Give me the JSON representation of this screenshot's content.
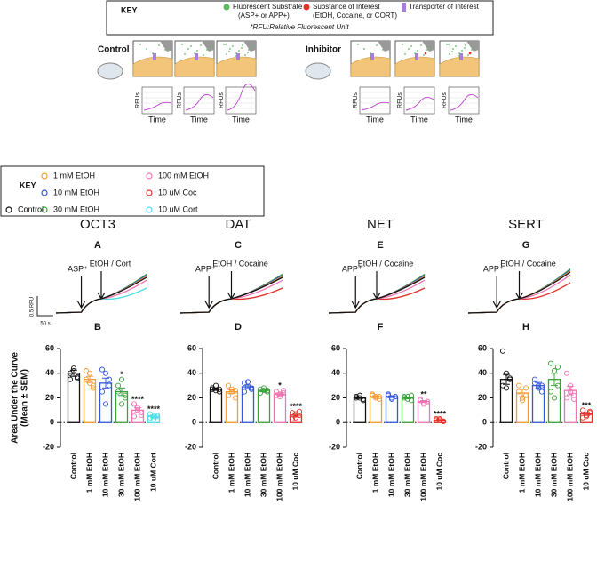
{
  "key_box": {
    "title": "KEY",
    "substrate": [
      "Fluorescent Substrate",
      "(ASP+ or APP+)"
    ],
    "substance": [
      "Substance of Interest",
      "(EtOH, Cocaine, or CORT)"
    ],
    "transporter": "Transporter of Interest",
    "footnote": "*RFU:Relative Fluorescent Unit"
  },
  "schematic": {
    "control_label": "Control",
    "inhibitor_label": "Inhibitor",
    "y_label": "RFUs",
    "x_label": "Time"
  },
  "legend": {
    "title": "KEY",
    "items": [
      {
        "name": "Control",
        "color": "#111111"
      },
      {
        "name": "1 mM EtOH",
        "color": "#f39b35"
      },
      {
        "name": "10 mM EtOH",
        "color": "#3558d6"
      },
      {
        "name": "30 mM EtOH",
        "color": "#3aa13a"
      },
      {
        "name": "100 mM EtOH",
        "color": "#ef74b1"
      },
      {
        "name": "10 uM Coc",
        "color": "#e2302a"
      },
      {
        "name": "10 uM Cort",
        "color": "#4fdde6"
      }
    ]
  },
  "scale_bar": {
    "y": "0.5 RFU",
    "x": "50 s"
  },
  "chart_data": [
    {
      "type": "bar",
      "title": "OCT3",
      "trace_panel": "A",
      "trace_annotations": [
        "ASP⁺",
        "EtOH / Cort"
      ],
      "panel_label": "B",
      "ylabel": [
        "Area Under the Curve",
        "(Mean ± SEM)"
      ],
      "categories": [
        "Control",
        "1 mM EtOH",
        "10 mM EtOH",
        "30 mM EtOH",
        "100 mM EtOH",
        "10 uM Cort"
      ],
      "colors": [
        "#111111",
        "#f39b35",
        "#3558d6",
        "#3aa13a",
        "#ef74b1",
        "#4fdde6"
      ],
      "values": [
        40,
        35,
        32,
        25,
        10,
        5
      ],
      "errors": [
        2.5,
        2.5,
        4,
        3,
        2,
        1
      ],
      "points": [
        [
          40,
          44,
          36,
          35,
          42,
          37
        ],
        [
          42,
          40,
          30,
          35,
          32,
          28
        ],
        [
          43,
          40,
          30,
          25,
          15,
          35
        ],
        [
          30,
          35,
          20,
          25,
          15,
          22
        ],
        [
          15,
          12,
          8,
          5,
          10,
          6
        ],
        [
          7,
          5,
          6,
          4,
          3,
          5
        ]
      ],
      "significance": [
        null,
        null,
        null,
        "*",
        "****",
        "****"
      ],
      "ylim": [
        -20,
        60
      ],
      "yticks": [
        -20,
        0,
        20,
        40,
        60
      ]
    },
    {
      "type": "bar",
      "title": "DAT",
      "trace_panel": "C",
      "trace_annotations": [
        "APP⁺",
        "EtOH / Cocaine"
      ],
      "panel_label": "D",
      "categories": [
        "Control",
        "1 mM EtOH",
        "10 mM EtOH",
        "30 mM EtOH",
        "100 mM EtOH",
        "10 uM Coc"
      ],
      "colors": [
        "#111111",
        "#f39b35",
        "#3558d6",
        "#3aa13a",
        "#ef74b1",
        "#e2302a"
      ],
      "values": [
        27,
        25,
        29,
        26,
        23,
        6
      ],
      "errors": [
        1,
        1.5,
        1.5,
        1,
        1,
        1.5
      ],
      "points": [
        [
          28,
          30,
          25,
          27,
          26,
          27
        ],
        [
          30,
          25,
          20,
          22,
          27,
          26
        ],
        [
          32,
          29,
          28,
          25,
          33,
          27
        ],
        [
          27,
          26,
          25,
          24,
          28,
          26
        ],
        [
          25,
          23,
          26,
          22,
          21,
          24
        ],
        [
          8,
          4,
          6,
          3,
          7,
          9
        ]
      ],
      "significance": [
        null,
        null,
        null,
        null,
        "*",
        "****"
      ],
      "ylim": [
        -20,
        60
      ],
      "yticks": [
        -20,
        0,
        20,
        40,
        60
      ]
    },
    {
      "type": "bar",
      "title": "NET",
      "trace_panel": "E",
      "trace_annotations": [
        "APP⁺",
        "EtOH / Cocaine"
      ],
      "panel_label": "F",
      "categories": [
        "Control",
        "1 mM EtOH",
        "10 mM EtOH",
        "30 mM EtOH",
        "100 mM EtOH",
        "10 uM Coc"
      ],
      "colors": [
        "#111111",
        "#f39b35",
        "#3558d6",
        "#3aa13a",
        "#ef74b1",
        "#e2302a"
      ],
      "values": [
        20,
        21,
        21,
        20,
        17,
        2
      ],
      "errors": [
        0.5,
        0.8,
        0.7,
        0.6,
        0.8,
        0.5
      ],
      "points": [
        [
          21,
          20,
          19,
          20,
          22,
          18
        ],
        [
          23,
          21,
          19,
          22,
          20,
          21
        ],
        [
          22,
          20,
          21,
          23,
          19,
          21
        ],
        [
          21,
          19,
          22,
          20,
          21,
          18
        ],
        [
          18,
          16,
          17,
          19,
          15,
          17
        ],
        [
          3,
          2,
          1,
          2,
          3,
          1
        ]
      ],
      "significance": [
        null,
        null,
        null,
        null,
        "**",
        "****"
      ],
      "ylim": [
        -20,
        60
      ],
      "yticks": [
        -20,
        0,
        20,
        40,
        60
      ]
    },
    {
      "type": "bar",
      "title": "SERT",
      "trace_panel": "G",
      "trace_annotations": [
        "APP⁺",
        "EtOH / Cocaine"
      ],
      "panel_label": "H",
      "categories": [
        "Control",
        "1 mM EtOH",
        "10 mM EtOH",
        "30 mM EtOH",
        "100 mM EtOH",
        "10 uM Coc"
      ],
      "colors": [
        "#111111",
        "#f39b35",
        "#3558d6",
        "#3aa13a",
        "#ef74b1",
        "#e2302a"
      ],
      "values": [
        35,
        24,
        30,
        35,
        26,
        7
      ],
      "errors": [
        4,
        3,
        2.5,
        5,
        3.5,
        1.2
      ],
      "points": [
        [
          58,
          40,
          35,
          30,
          28,
          36
        ],
        [
          30,
          20,
          22,
          25,
          18,
          28
        ],
        [
          35,
          28,
          25,
          32,
          30,
          30
        ],
        [
          48,
          42,
          30,
          25,
          20,
          45
        ],
        [
          40,
          30,
          22,
          20,
          25,
          19
        ],
        [
          10,
          5,
          8,
          4,
          6,
          9
        ]
      ],
      "significance": [
        null,
        null,
        null,
        null,
        null,
        "***"
      ],
      "ylim": [
        -20,
        60
      ],
      "yticks": [
        -20,
        0,
        20,
        40,
        60
      ]
    }
  ]
}
